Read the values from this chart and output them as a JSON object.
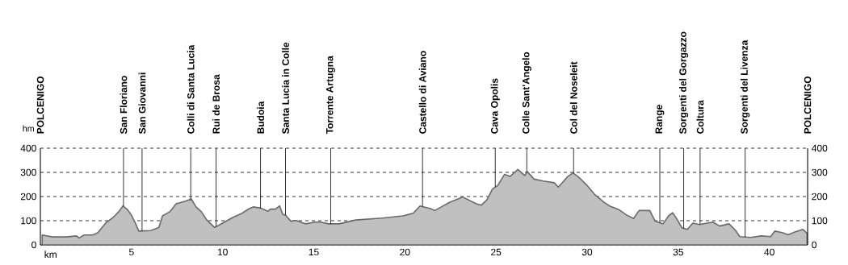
{
  "chart_data": {
    "type": "area",
    "xlabel": "km",
    "ylabel": "hm",
    "x": [
      0.1,
      0.67,
      1.4,
      2.0,
      2.1,
      2.4,
      2.86,
      3.15,
      3.6,
      4.0,
      4.3,
      4.53,
      4.75,
      4.97,
      5.2,
      5.4,
      6.06,
      6.5,
      6.7,
      7.1,
      7.45,
      7.96,
      8.28,
      8.54,
      8.83,
      9.13,
      9.56,
      10.0,
      10.58,
      11.0,
      11.46,
      11.68,
      12.1,
      12.48,
      12.62,
      12.9,
      13.13,
      13.3,
      13.45,
      13.74,
      14.04,
      14.56,
      15.07,
      15.37,
      15.81,
      16.4,
      17.3,
      18.76,
      19.9,
      20.46,
      20.83,
      21.41,
      21.64,
      22.0,
      22.45,
      23.18,
      23.92,
      24.19,
      24.51,
      24.81,
      25.1,
      25.47,
      25.77,
      26.2,
      26.58,
      26.72,
      27.09,
      27.6,
      28.2,
      28.42,
      28.79,
      28.94,
      29.23,
      29.6,
      29.97,
      30.41,
      30.93,
      31.23,
      31.74,
      32.18,
      32.55,
      32.85,
      33.44,
      33.73,
      34.17,
      34.47,
      34.69,
      34.91,
      35.21,
      35.5,
      35.8,
      36.17,
      36.9,
      37.27,
      37.79,
      38.15,
      38.38,
      38.97,
      39.56,
      40.07,
      40.3,
      40.74,
      41.03,
      41.4,
      41.84,
      42.07
    ],
    "series": [
      {
        "color": "#c0c0c0",
        "values": [
          41,
          33,
          33,
          37,
          28,
          41,
          41,
          50,
          92,
          114,
          137,
          161,
          148,
          126,
          92,
          57,
          59,
          72,
          120,
          137,
          170,
          181,
          190,
          157,
          137,
          103,
          72,
          90,
          114,
          128,
          150,
          157,
          152,
          139,
          148,
          148,
          161,
          126,
          123,
          98,
          101,
          87,
          94,
          94,
          87,
          87,
          103,
          111,
          120,
          131,
          161,
          150,
          142,
          157,
          176,
          198,
          170,
          164,
          187,
          231,
          246,
          292,
          283,
          312,
          287,
          303,
          272,
          264,
          257,
          239,
          270,
          283,
          298,
          276,
          248,
          209,
          176,
          161,
          146,
          123,
          109,
          142,
          142,
          98,
          87,
          120,
          133,
          109,
          70,
          64,
          90,
          84,
          94,
          78,
          87,
          59,
          34,
          31,
          37,
          34,
          57,
          50,
          42,
          53,
          64,
          48
        ]
      }
    ],
    "xlim": [
      0,
      42.1
    ],
    "xticks": [
      5,
      10,
      15,
      20,
      25,
      30,
      35,
      40
    ],
    "ylim": [
      0,
      400
    ],
    "yticks": [
      0,
      100,
      200,
      300,
      400
    ],
    "y2lim": [
      0,
      400
    ],
    "y2ticks": [
      0,
      100,
      200,
      300,
      400
    ],
    "grid": "y",
    "ref_lines": [
      {
        "axis": "x",
        "value": 0,
        "label": "POLCENIGO"
      },
      {
        "axis": "x",
        "value": 4.56,
        "label": "San Floriano"
      },
      {
        "axis": "x",
        "value": 5.58,
        "label": "San Giovanni"
      },
      {
        "axis": "x",
        "value": 8.25,
        "label": "Colli di Santa Lucia"
      },
      {
        "axis": "x",
        "value": 9.64,
        "label": "Rui de Brosa"
      },
      {
        "axis": "x",
        "value": 12.08,
        "label": "Budoia"
      },
      {
        "axis": "x",
        "value": 13.45,
        "label": "Santa Lucia in Colle"
      },
      {
        "axis": "x",
        "value": 15.93,
        "label": "Torrente Artugna"
      },
      {
        "axis": "x",
        "value": 20.97,
        "label": "Castello di Aviano"
      },
      {
        "axis": "x",
        "value": 24.96,
        "label": "Cava Opolis"
      },
      {
        "axis": "x",
        "value": 26.69,
        "label": "Colle Sant'Angelo"
      },
      {
        "axis": "x",
        "value": 29.26,
        "label": "Col del Noseleit"
      },
      {
        "axis": "x",
        "value": 33.99,
        "label": "Range"
      },
      {
        "axis": "x",
        "value": 35.3,
        "label": "Sorgenti del Gorgazzo"
      },
      {
        "axis": "x",
        "value": 36.2,
        "label": "Coltura"
      },
      {
        "axis": "x",
        "value": 38.67,
        "label": "Sorgenti del Livenza"
      },
      {
        "axis": "x",
        "value": 42.1,
        "label": "POLCENIGO"
      }
    ]
  }
}
